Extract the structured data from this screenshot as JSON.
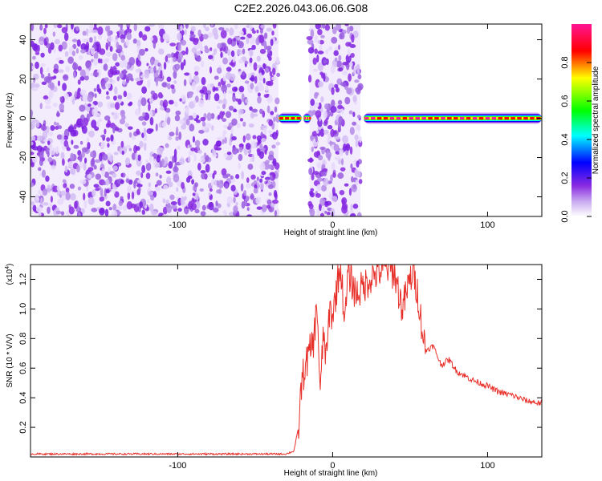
{
  "page": {
    "title": "C2E2.2026.043.06.06.G08"
  },
  "chart_data": [
    {
      "type": "heatmap",
      "xlabel": "Height of straight line (km)",
      "ylabel": "Frequency (Hz)",
      "xlim": [
        -195,
        135
      ],
      "ylim": [
        -50,
        48
      ],
      "xticks": [
        -100,
        0,
        100
      ],
      "yticks": [
        -40,
        -20,
        0,
        20,
        40
      ],
      "colorbar": {
        "label": "Normalized spectral amplitude",
        "range": [
          0,
          1
        ],
        "ticks": [
          "0.0",
          "0.2",
          "0.4",
          "0.6",
          "0.8"
        ],
        "colors": [
          "#ffffff",
          "#c8a8f0",
          "#8a2be2",
          "#0000ff",
          "#00ffff",
          "#00ff00",
          "#ffff00",
          "#ff0000",
          "#ff1493"
        ]
      },
      "noise_band_segments": [
        [
          -195,
          -35
        ],
        [
          -15,
          18
        ]
      ],
      "signal_segments": [
        {
          "x": [
            -35,
            -20
          ],
          "freq": 0,
          "amplitude": 0.9
        },
        {
          "x": [
            -19,
            -14
          ],
          "freq": 0,
          "amplitude": 0.6
        },
        {
          "x": [
            20,
            135
          ],
          "freq": 0,
          "amplitude": 0.85
        }
      ]
    },
    {
      "type": "line",
      "xlabel": "Height of straight line (km)",
      "ylabel": "SNR (10 * V/V)",
      "y_scale_label": "(x10",
      "y_scale_exponent": "4",
      "xlim": [
        -195,
        135
      ],
      "ylim": [
        0,
        1.3
      ],
      "xticks": [
        -100,
        0,
        100
      ],
      "yticks": [
        0.2,
        0.4,
        0.6,
        0.8,
        1.0,
        1.2
      ],
      "ytick_labels": [
        "0.2",
        "0.4",
        "0.6",
        "0.8",
        "1.0",
        "1.2"
      ],
      "series": [
        {
          "color": "#e8302a",
          "x": [
            -195,
            -180,
            -160,
            -140,
            -120,
            -100,
            -80,
            -60,
            -40,
            -30,
            -25,
            -22,
            -20,
            -18,
            -15,
            -12,
            -10,
            -8,
            -6,
            -4,
            -2,
            0,
            2,
            5,
            8,
            10,
            15,
            20,
            25,
            30,
            35,
            40,
            45,
            50,
            52,
            55,
            58,
            60,
            65,
            70,
            75,
            80,
            85,
            90,
            95,
            100,
            105,
            110,
            115,
            120,
            125,
            130,
            135
          ],
          "y": [
            0.02,
            0.02,
            0.02,
            0.02,
            0.02,
            0.02,
            0.02,
            0.02,
            0.02,
            0.02,
            0.04,
            0.2,
            0.5,
            0.6,
            0.7,
            0.8,
            1.05,
            0.4,
            0.85,
            0.65,
            1.0,
            0.95,
            1.1,
            1.3,
            0.9,
            1.25,
            1.1,
            1.15,
            1.22,
            1.25,
            1.28,
            1.24,
            1.0,
            1.2,
            1.25,
            1.1,
            0.85,
            0.72,
            0.75,
            0.62,
            0.66,
            0.58,
            0.55,
            0.52,
            0.5,
            0.48,
            0.45,
            0.43,
            0.42,
            0.4,
            0.38,
            0.37,
            0.36
          ]
        }
      ]
    }
  ]
}
